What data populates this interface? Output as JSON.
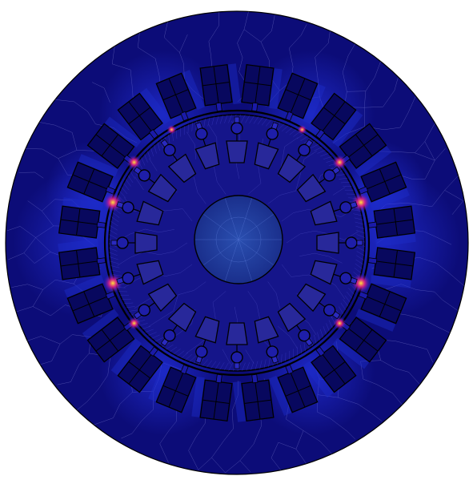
{
  "view": {
    "subject": "electric-machine-cross-section",
    "colormap": "magnetic-flux-density",
    "colors": {
      "background": "#ffffff",
      "field_low": "#0b0b7a",
      "field_mid": "#1c2cc8",
      "field_high": "#b01060",
      "field_peak": "#ffd21a",
      "mesh_lines": "#8a8ad8",
      "outlines": "#000000",
      "shaft": "#1e3c9a"
    }
  },
  "model": {
    "stator_slots": 24,
    "rotor_slots": 20,
    "rotor_bars_round": 20
  }
}
